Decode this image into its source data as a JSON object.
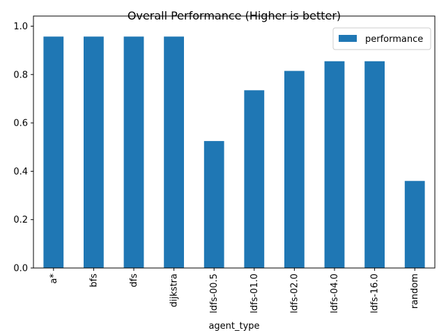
{
  "chart_data": {
    "type": "bar",
    "title": "Overall Performance (Higher is better)",
    "xlabel": "agent_type",
    "ylabel": "",
    "categories": [
      "a*",
      "bfs",
      "dfs",
      "dijkstra",
      "ldfs-00.5",
      "ldfs-01.0",
      "ldfs-02.0",
      "ldfs-04.0",
      "ldfs-16.0",
      "random"
    ],
    "series": [
      {
        "name": "performance",
        "color": "#1f77b4",
        "values": [
          0.957,
          0.957,
          0.957,
          0.957,
          0.525,
          0.735,
          0.815,
          0.855,
          0.855,
          0.36
        ]
      }
    ],
    "ylim": [
      0,
      1.0
    ],
    "yticks": [
      "0.0",
      "0.2",
      "0.4",
      "0.6",
      "0.8",
      "1.0"
    ],
    "grid": false,
    "legend_position": "top-right"
  }
}
